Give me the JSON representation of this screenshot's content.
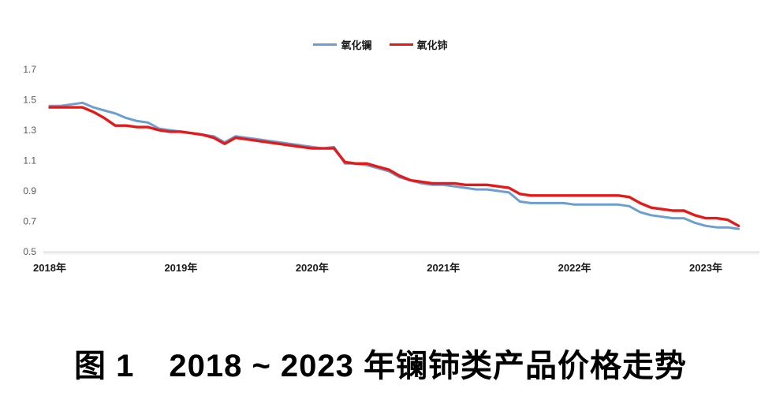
{
  "caption": {
    "label": "图 1",
    "title": "2018 ~ 2023 年镧铈类产品价格走势"
  },
  "legend": {
    "position": "top"
  },
  "chart_data": {
    "type": "line",
    "title": "2018 ~ 2023 年镧铈类产品价格走势",
    "xlabel": "",
    "ylabel": "",
    "ylim": [
      0.5,
      1.7
    ],
    "grid": false,
    "legend_position": "top-center",
    "y_ticks": [
      1.7,
      1.5,
      1.3,
      1.1,
      0.9,
      0.7,
      0.5
    ],
    "x_tick_labels": [
      "2018年",
      "2019年",
      "2020年",
      "2021年",
      "2022年",
      "2023年"
    ],
    "x_tick_positions_months": [
      0,
      12,
      24,
      36,
      48,
      60
    ],
    "x_unit": "month",
    "x_categories": [
      "2018-01",
      "2018-02",
      "2018-03",
      "2018-04",
      "2018-05",
      "2018-06",
      "2018-07",
      "2018-08",
      "2018-09",
      "2018-10",
      "2018-11",
      "2018-12",
      "2019-01",
      "2019-02",
      "2019-03",
      "2019-04",
      "2019-05",
      "2019-06",
      "2019-07",
      "2019-08",
      "2019-09",
      "2019-10",
      "2019-11",
      "2019-12",
      "2020-01",
      "2020-02",
      "2020-03",
      "2020-04",
      "2020-05",
      "2020-06",
      "2020-07",
      "2020-08",
      "2020-09",
      "2020-10",
      "2020-11",
      "2020-12",
      "2021-01",
      "2021-02",
      "2021-03",
      "2021-04",
      "2021-05",
      "2021-06",
      "2021-07",
      "2021-08",
      "2021-09",
      "2021-10",
      "2021-11",
      "2021-12",
      "2022-01",
      "2022-02",
      "2022-03",
      "2022-04",
      "2022-05",
      "2022-06",
      "2022-07",
      "2022-08",
      "2022-09",
      "2022-10",
      "2022-11",
      "2022-12",
      "2023-01",
      "2023-02",
      "2023-03",
      "2023-04"
    ],
    "series": [
      {
        "name": "氧化镧",
        "color": "#6C9ED2",
        "values": [
          1.46,
          1.46,
          1.47,
          1.48,
          1.45,
          1.43,
          1.41,
          1.38,
          1.36,
          1.35,
          1.31,
          1.3,
          1.29,
          1.28,
          1.27,
          1.26,
          1.22,
          1.26,
          1.25,
          1.24,
          1.23,
          1.22,
          1.21,
          1.2,
          1.19,
          1.18,
          1.19,
          1.08,
          1.08,
          1.07,
          1.05,
          1.03,
          0.99,
          0.97,
          0.95,
          0.94,
          0.94,
          0.93,
          0.92,
          0.91,
          0.91,
          0.9,
          0.89,
          0.83,
          0.82,
          0.82,
          0.82,
          0.82,
          0.81,
          0.81,
          0.81,
          0.81,
          0.81,
          0.8,
          0.76,
          0.74,
          0.73,
          0.72,
          0.72,
          0.69,
          0.67,
          0.66,
          0.66,
          0.65
        ]
      },
      {
        "name": "氧化铈",
        "color": "#E51A18",
        "values": [
          1.45,
          1.45,
          1.45,
          1.45,
          1.42,
          1.38,
          1.33,
          1.33,
          1.32,
          1.32,
          1.3,
          1.29,
          1.29,
          1.28,
          1.27,
          1.25,
          1.21,
          1.25,
          1.24,
          1.23,
          1.22,
          1.21,
          1.2,
          1.19,
          1.18,
          1.18,
          1.18,
          1.09,
          1.08,
          1.08,
          1.06,
          1.04,
          1.0,
          0.97,
          0.96,
          0.95,
          0.95,
          0.95,
          0.94,
          0.94,
          0.94,
          0.93,
          0.92,
          0.88,
          0.87,
          0.87,
          0.87,
          0.87,
          0.87,
          0.87,
          0.87,
          0.87,
          0.87,
          0.86,
          0.82,
          0.79,
          0.78,
          0.77,
          0.77,
          0.74,
          0.72,
          0.72,
          0.71,
          0.67
        ]
      }
    ]
  }
}
